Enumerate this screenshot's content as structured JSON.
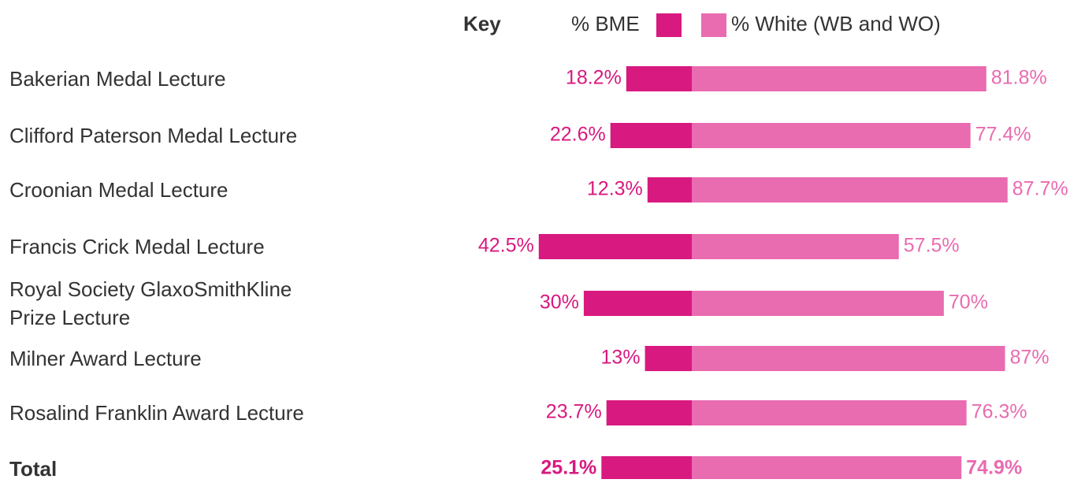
{
  "chart_data": {
    "type": "diverging-bar",
    "legend_title": "Key",
    "categories": [
      "Bakerian Medal Lecture",
      "Clifford Paterson Medal Lecture",
      "Croonian Medal Lecture",
      "Francis Crick Medal Lecture",
      "Royal Society GlaxoSmithKline\nPrize Lecture",
      "Milner Award Lecture",
      "Rosalind Franklin Award Lecture",
      "Total"
    ],
    "series": [
      {
        "name": "% BME",
        "color": "#d8197f",
        "values": [
          18.2,
          22.6,
          12.3,
          42.5,
          30,
          13,
          23.7,
          25.1
        ],
        "value_labels": [
          "18.2%",
          "22.6%",
          "12.3%",
          "42.5%",
          "30%",
          "13%",
          "23.7%",
          "25.1%"
        ]
      },
      {
        "name": "% White (WB and WO)",
        "color": "#e96bb0",
        "values": [
          81.8,
          77.4,
          87.7,
          57.5,
          70,
          87,
          76.3,
          74.9
        ],
        "value_labels": [
          "81.8%",
          "77.4%",
          "87.7%",
          "57.5%",
          "70%",
          "87%",
          "76.3%",
          "74.9%"
        ]
      }
    ]
  }
}
